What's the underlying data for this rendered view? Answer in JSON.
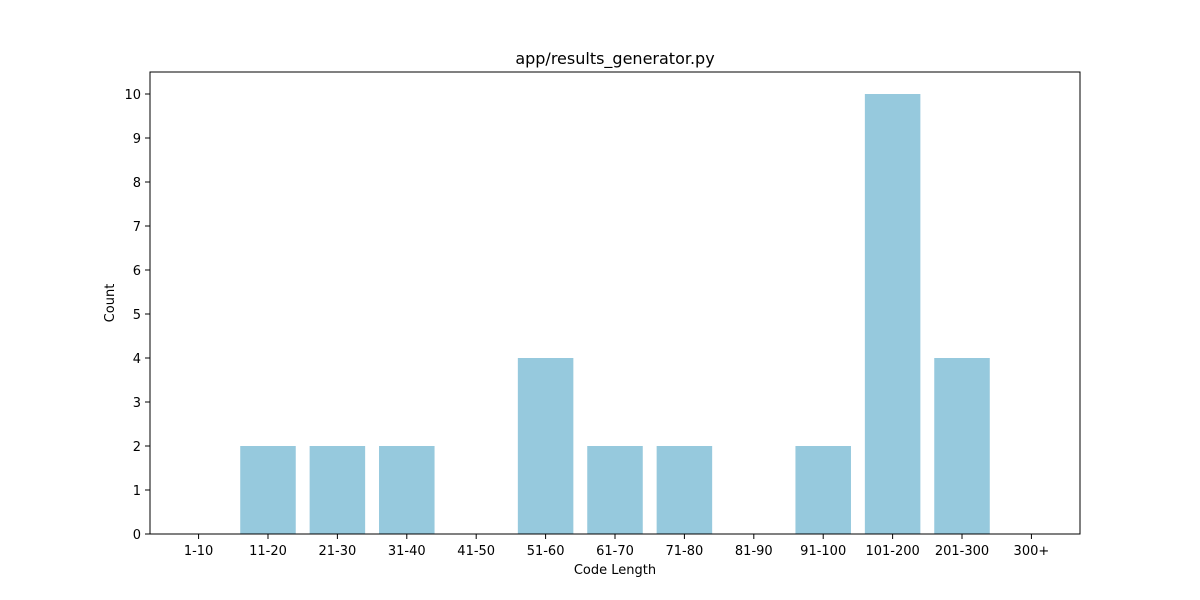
{
  "chart_data": {
    "type": "bar",
    "title": "app/results_generator.py",
    "xlabel": "Code Length",
    "ylabel": "Count",
    "categories": [
      "1-10",
      "11-20",
      "21-30",
      "31-40",
      "41-50",
      "51-60",
      "61-70",
      "71-80",
      "81-90",
      "91-100",
      "101-200",
      "201-300",
      "300+"
    ],
    "values": [
      0,
      2,
      2,
      2,
      0,
      4,
      2,
      2,
      0,
      2,
      10,
      4,
      0
    ],
    "ylim": [
      0,
      10.5
    ],
    "yticks": [
      0,
      1,
      2,
      3,
      4,
      5,
      6,
      7,
      8,
      9,
      10
    ],
    "bar_color": "#96c9dd",
    "grid": false,
    "legend": "none"
  }
}
